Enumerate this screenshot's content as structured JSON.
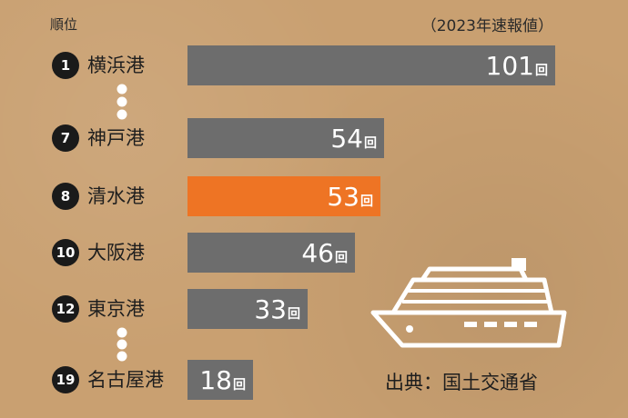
{
  "header": {
    "rank_label": "順位",
    "year_note": "（2023年速報値）"
  },
  "source_label": "出典：国土交通省",
  "colors": {
    "bar_default": "#6d6d6d",
    "bar_highlight": "#ee7424",
    "background": "#c9a071"
  },
  "icons": {
    "ship": "cruise-ship-icon"
  },
  "chart_data": {
    "type": "bar",
    "orientation": "horizontal",
    "unit": "回",
    "items": [
      {
        "rank": "1",
        "port": "横浜港",
        "value": 101,
        "highlight": false
      },
      {
        "rank": "7",
        "port": "神戸港",
        "value": 54,
        "highlight": false
      },
      {
        "rank": "8",
        "port": "清水港",
        "value": 53,
        "highlight": true
      },
      {
        "rank": "10",
        "port": "大阪港",
        "value": 46,
        "highlight": false
      },
      {
        "rank": "12",
        "port": "東京港",
        "value": 33,
        "highlight": false
      },
      {
        "rank": "19",
        "port": "名古屋港",
        "value": 18,
        "highlight": false
      }
    ],
    "rank_gaps_after": [
      "1",
      "12"
    ]
  }
}
